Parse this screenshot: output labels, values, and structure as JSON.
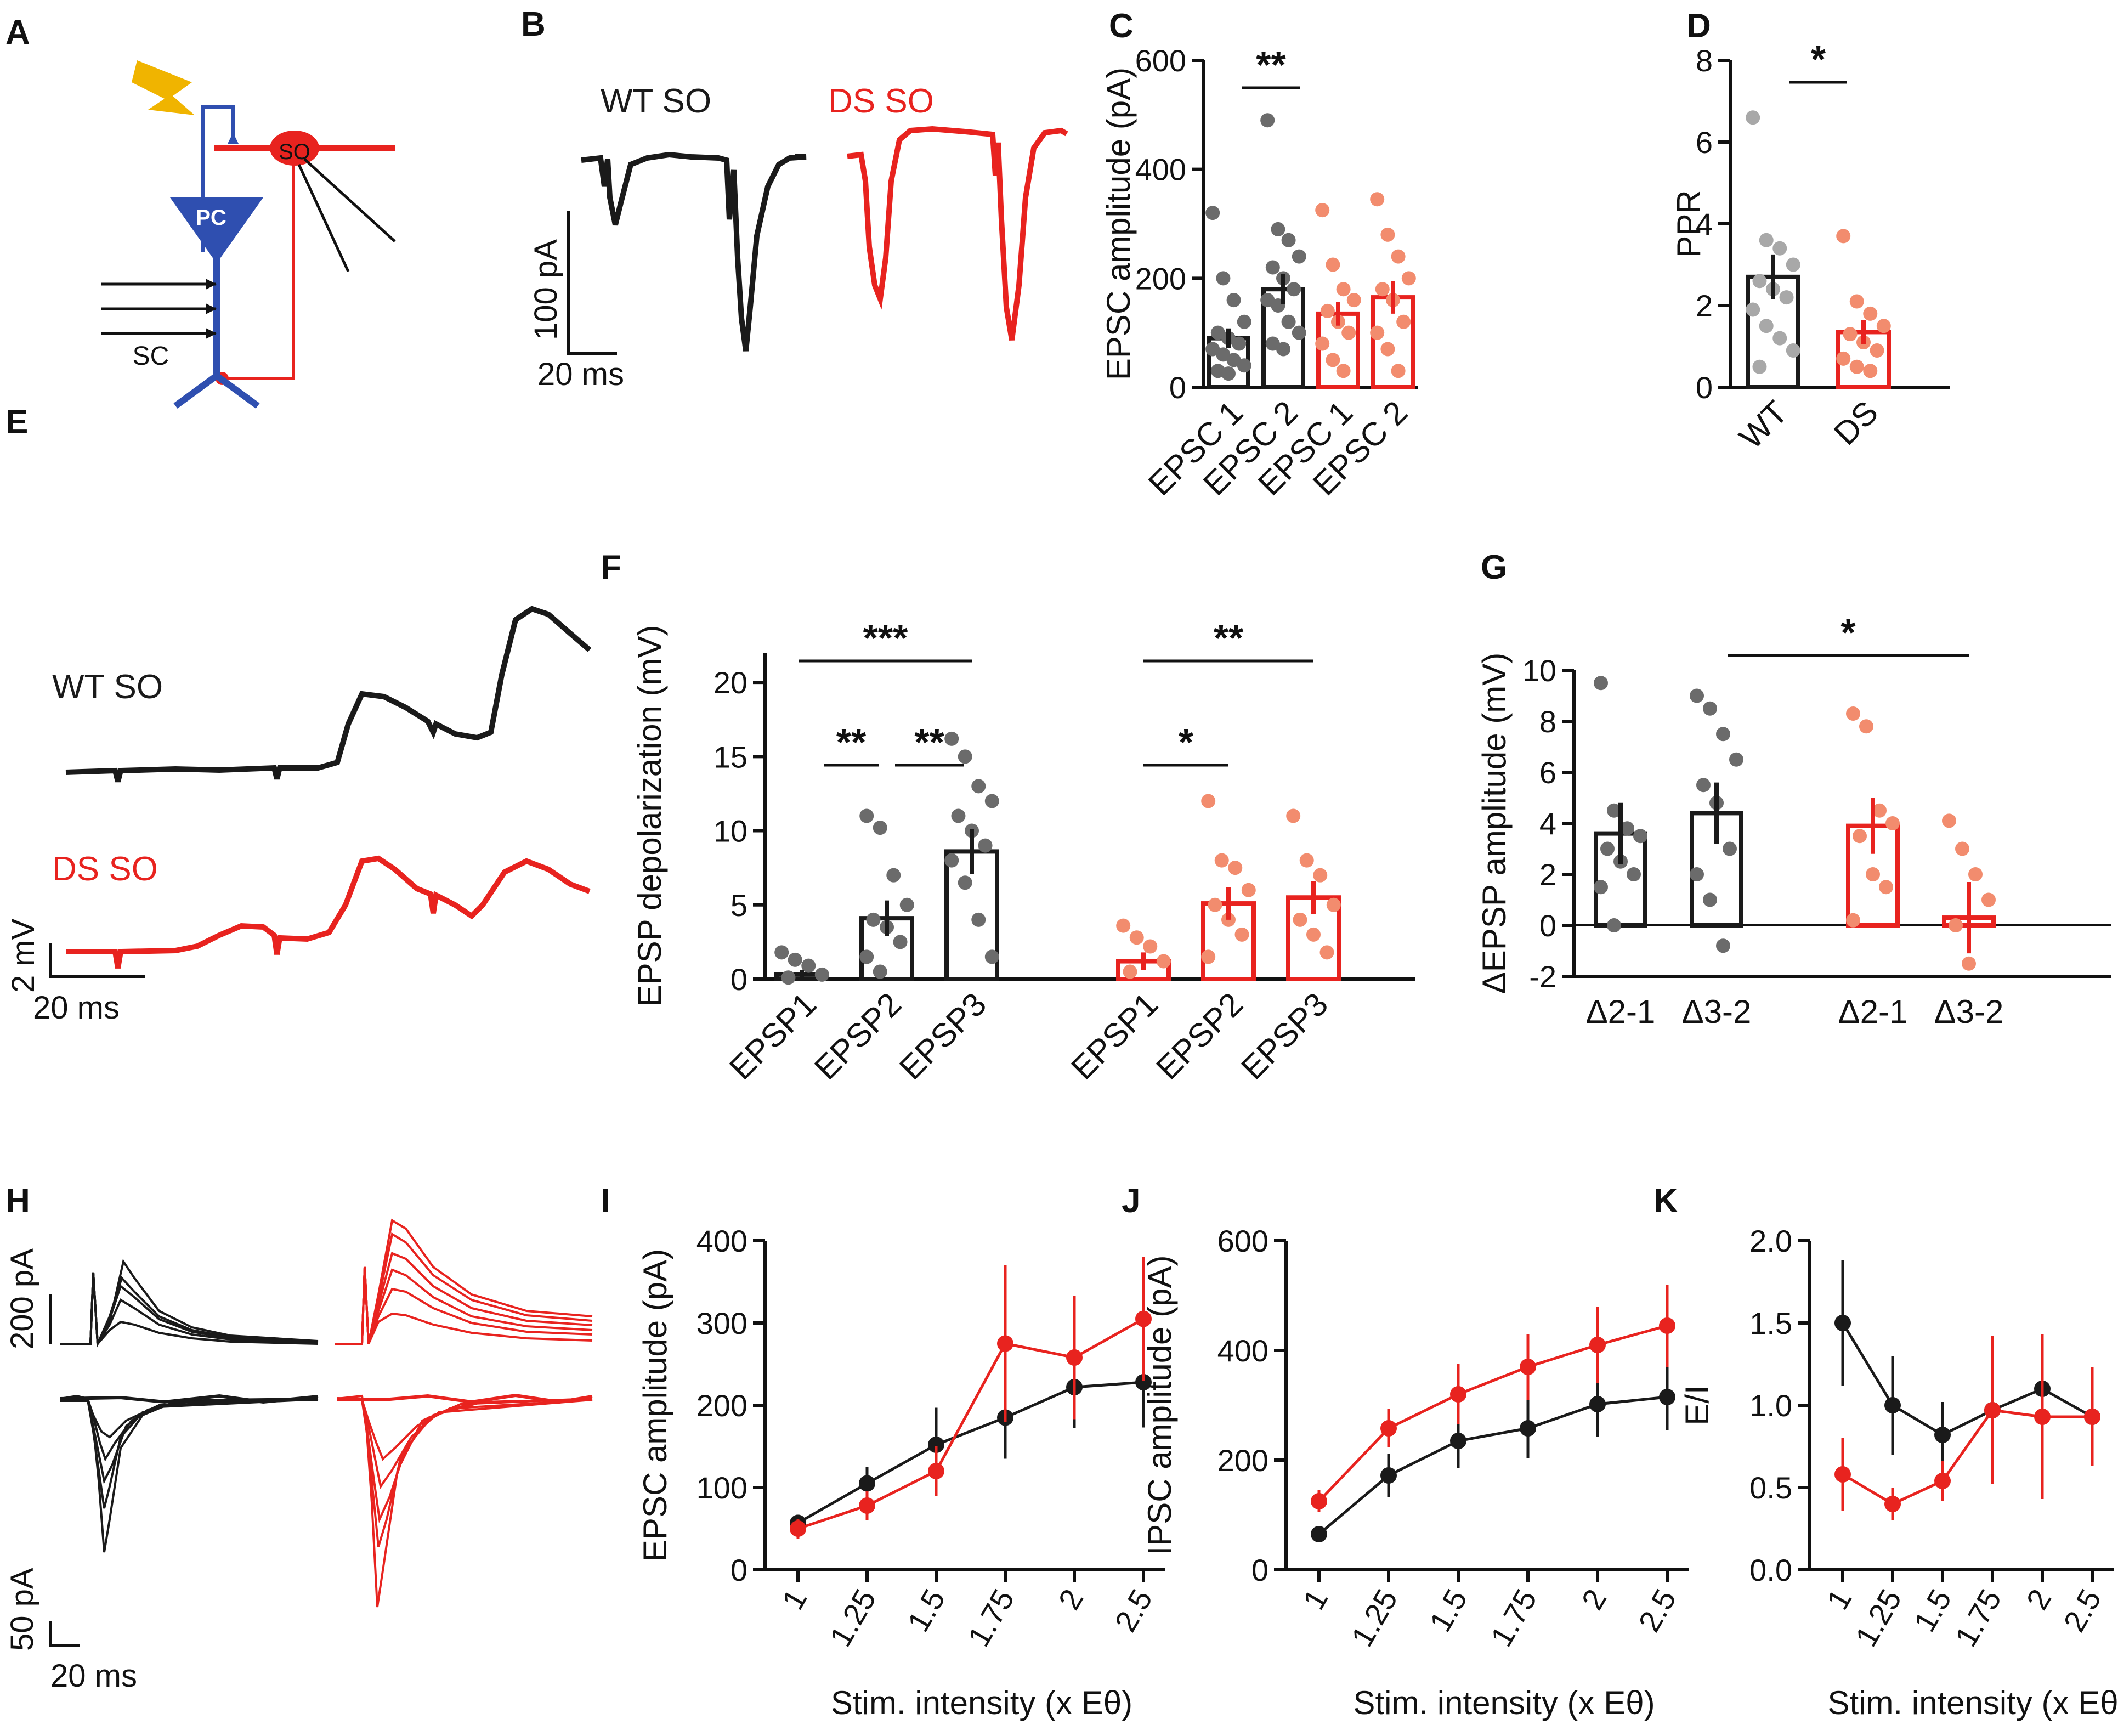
{
  "colors": {
    "wt": "#1a1a1a",
    "ds": "#e8231f",
    "wt_dot": "#6b6b6b",
    "wt_dot_light": "#a8a8a8",
    "ds_dot": "#f28c6e",
    "pc": "#2f4fb0",
    "bolt": "#f0b400"
  },
  "panels": {
    "A": {
      "letter": "A",
      "pc_label": "PC",
      "so_label": "SO",
      "sc_label": "SC"
    },
    "B": {
      "letter": "B",
      "wt_label": "WT SO",
      "ds_label": "DS SO",
      "scale_y": "100 pA",
      "scale_x": "20 ms"
    },
    "E": {
      "letter": "E",
      "wt_label": "WT SO",
      "ds_label": "DS SO",
      "scale_y": "2 mV",
      "scale_x": "20 ms"
    },
    "H": {
      "letter": "H",
      "scale_y_top": "200 pA",
      "scale_y_bottom": "50 pA",
      "scale_x": "20 ms"
    }
  },
  "chart_data": [
    {
      "id": "C",
      "type": "bar",
      "letter": "C",
      "ylabel": "EPSC amplitude (pA)",
      "ylim": [
        0,
        600
      ],
      "yticks": [
        "0",
        "200",
        "400",
        "600"
      ],
      "categories": [
        "EPSC 1",
        "EPSC 2",
        "EPSC 1",
        "EPSC 2"
      ],
      "groups": [
        "WT",
        "WT",
        "DS",
        "DS"
      ],
      "values": [
        90,
        180,
        135,
        165
      ],
      "sem": [
        18,
        28,
        22,
        30
      ],
      "points": [
        [
          320,
          200,
          160,
          120,
          100,
          90,
          80,
          70,
          60,
          50,
          40,
          30,
          25
        ],
        [
          490,
          290,
          270,
          240,
          220,
          200,
          180,
          160,
          150,
          120,
          100,
          80,
          70
        ],
        [
          325,
          225,
          180,
          160,
          140,
          120,
          100,
          80,
          50,
          30
        ],
        [
          345,
          280,
          240,
          200,
          180,
          160,
          120,
          100,
          70,
          30
        ]
      ],
      "significance": [
        {
          "from": 0,
          "to": 1,
          "label": "**"
        }
      ]
    },
    {
      "id": "D",
      "type": "bar",
      "letter": "D",
      "ylabel": "PPR",
      "ylim": [
        0,
        8
      ],
      "yticks": [
        "0",
        "2",
        "4",
        "6",
        "8"
      ],
      "categories": [
        "WT",
        "DS"
      ],
      "groups": [
        "WT",
        "DS"
      ],
      "values": [
        2.7,
        1.35
      ],
      "sem": [
        0.55,
        0.3
      ],
      "points": [
        [
          6.6,
          3.6,
          3.4,
          3.0,
          2.6,
          2.4,
          2.2,
          1.9,
          1.5,
          1.2,
          0.9,
          0.5
        ],
        [
          3.7,
          2.1,
          1.8,
          1.5,
          1.3,
          1.1,
          0.9,
          0.7,
          0.5,
          0.4
        ]
      ],
      "significance": [
        {
          "from": 0,
          "to": 1,
          "label": "*"
        }
      ]
    },
    {
      "id": "F",
      "type": "bar",
      "letter": "F",
      "ylabel": "EPSP depolarization (mV)",
      "ylim": [
        0,
        22
      ],
      "yticks": [
        "0",
        "5",
        "10",
        "15",
        "20"
      ],
      "categories": [
        "EPSP1",
        "EPSP2",
        "EPSP3",
        "EPSP1",
        "EPSP2",
        "EPSP3"
      ],
      "groups": [
        "WT",
        "WT",
        "WT",
        "DS",
        "DS",
        "DS"
      ],
      "values": [
        0.3,
        4.1,
        8.6,
        1.2,
        5.1,
        5.5
      ],
      "sem": [
        0.3,
        1.2,
        1.5,
        0.6,
        1.1,
        1.1
      ],
      "points": [
        [
          1.8,
          1.3,
          0.9,
          0.3,
          0.1
        ],
        [
          11.0,
          10.2,
          7.0,
          5.0,
          4.0,
          3.5,
          2.5,
          1.5,
          0.5
        ],
        [
          16.2,
          15.0,
          13.0,
          12.0,
          11.0,
          10.0,
          9.0,
          8.0,
          6.5,
          4.0,
          1.5
        ],
        [
          3.6,
          2.8,
          2.2,
          1.2,
          0.5
        ],
        [
          12.0,
          8.0,
          7.5,
          6.0,
          5.0,
          4.0,
          3.0,
          1.5
        ],
        [
          11.0,
          8.0,
          7.0,
          5.0,
          4.0,
          3.0,
          1.8
        ]
      ],
      "significance": [
        {
          "from": 0,
          "to": 2,
          "label": "***"
        },
        {
          "from": 1,
          "to": 2,
          "label": "**"
        },
        {
          "from": 1.8,
          "to": 3,
          "label": "**"
        },
        {
          "from": 3,
          "to": 5,
          "label": "**"
        },
        {
          "from": 3,
          "to": 4,
          "label": "*"
        }
      ]
    },
    {
      "id": "G",
      "type": "bar",
      "letter": "G",
      "ylabel": "ΔEPSP amplitude (mV)",
      "ylim": [
        -2,
        10
      ],
      "yticks": [
        "-2",
        "0",
        "2",
        "4",
        "6",
        "8",
        "10"
      ],
      "categories": [
        "Δ2-1",
        "Δ3-2",
        "Δ2-1",
        "Δ3-2"
      ],
      "groups": [
        "WT",
        "WT",
        "DS",
        "DS"
      ],
      "values": [
        3.6,
        4.4,
        3.9,
        0.3
      ],
      "sem": [
        1.2,
        1.2,
        1.1,
        1.4
      ],
      "points": [
        [
          9.5,
          4.5,
          3.8,
          3.5,
          3.0,
          2.5,
          2.0,
          1.5,
          0.0
        ],
        [
          9.0,
          8.5,
          7.5,
          6.5,
          5.5,
          4.8,
          3.0,
          2.0,
          1.0,
          -0.8
        ],
        [
          8.3,
          7.8,
          4.5,
          4.0,
          3.5,
          2.0,
          1.5,
          0.2
        ],
        [
          4.1,
          3.0,
          2.0,
          1.0,
          0.0,
          -1.5
        ]
      ],
      "significance": [
        {
          "from": 1,
          "to": 3,
          "label": "*"
        }
      ]
    },
    {
      "id": "I",
      "type": "line",
      "letter": "I",
      "xlabel": "Stim. intensity (x Eθ)",
      "ylabel": "EPSC amplitude (pA)",
      "categories": [
        "1",
        "1.25",
        "1.5",
        "1.75",
        "2",
        "2.5"
      ],
      "ylim": [
        0,
        400
      ],
      "yticks": [
        "0",
        "100",
        "200",
        "300",
        "400"
      ],
      "series": [
        {
          "name": "WT",
          "values": [
            57,
            105,
            152,
            185,
            222,
            228
          ],
          "err": [
            10,
            20,
            45,
            50,
            50,
            55
          ]
        },
        {
          "name": "DS",
          "values": [
            50,
            78,
            120,
            275,
            258,
            305
          ],
          "err": [
            12,
            18,
            30,
            95,
            75,
            75
          ]
        }
      ]
    },
    {
      "id": "J",
      "type": "line",
      "letter": "J",
      "xlabel": "Stim. intensity (x Eθ)",
      "ylabel": "IPSC amplitude (pA)",
      "categories": [
        "1",
        "1.25",
        "1.5",
        "1.75",
        "2",
        "2.5"
      ],
      "ylim": [
        0,
        600
      ],
      "yticks": [
        "0",
        "200",
        "400",
        "600"
      ],
      "series": [
        {
          "name": "WT",
          "values": [
            65,
            172,
            235,
            258,
            302,
            315
          ],
          "err": [
            15,
            40,
            50,
            55,
            60,
            60
          ]
        },
        {
          "name": "DS",
          "values": [
            125,
            258,
            320,
            370,
            410,
            445
          ],
          "err": [
            20,
            35,
            55,
            60,
            70,
            75
          ]
        }
      ]
    },
    {
      "id": "K",
      "type": "line",
      "letter": "K",
      "xlabel": "Stim. intensity (x Eθ)",
      "ylabel": "E/I",
      "categories": [
        "1",
        "1.25",
        "1.5",
        "1.75",
        "2",
        "2.5"
      ],
      "ylim": [
        0,
        2
      ],
      "yticks": [
        "0.0",
        "0.5",
        "1.0",
        "1.5",
        "2.0"
      ],
      "series": [
        {
          "name": "WT",
          "values": [
            1.5,
            1.0,
            0.82,
            0.97,
            1.1,
            0.93
          ],
          "err": [
            0.38,
            0.3,
            0.2,
            0.45,
            0.3,
            0.3
          ]
        },
        {
          "name": "DS",
          "values": [
            0.58,
            0.4,
            0.54,
            0.97,
            0.93,
            0.93
          ],
          "err": [
            0.22,
            0.1,
            0.12,
            0.45,
            0.5,
            0.3
          ]
        }
      ]
    }
  ]
}
